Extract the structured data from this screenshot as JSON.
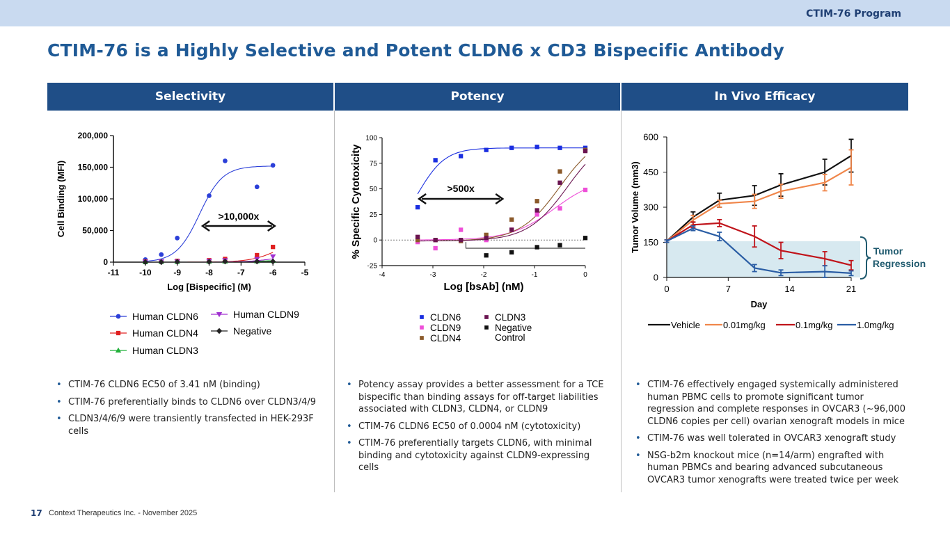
{
  "header": {
    "program": "CTIM-76 Program"
  },
  "title": "CTIM-76 is a Highly Selective and Potent CLDN6 x CD3 Bispecific Antibody",
  "columns": [
    {
      "heading": "Selectivity"
    },
    {
      "heading": "Potency"
    },
    {
      "heading": "In Vivo Efficacy"
    }
  ],
  "colors": {
    "header_bar": "#1f4e87",
    "title": "#1f5a96",
    "top_band": "#c9daf0"
  },
  "chart_data": [
    {
      "type": "scatter",
      "xlabel": "Log [Bispecific] (M)",
      "ylabel": "Cell Binding (MFI)",
      "xlim": [
        -11,
        -5
      ],
      "ylim": [
        0,
        200000
      ],
      "x_ticks": [
        "-11",
        "-10",
        "-9",
        "-8",
        "-7",
        "-6",
        "-5"
      ],
      "y_ticks": [
        "0",
        "50,000",
        "100,000",
        "150,000",
        "200,000"
      ],
      "annotation": ">10,000x",
      "series": [
        {
          "name": "Human CLDN6",
          "color": "#2b3fd8",
          "marker": "circle",
          "x": [
            -10,
            -9.5,
            -9,
            -8,
            -7.5,
            -6.5,
            -6
          ],
          "y": [
            4000,
            12000,
            38000,
            105000,
            160000,
            119000,
            153000
          ]
        },
        {
          "name": "Human CLDN4",
          "color": "#e02020",
          "marker": "square",
          "x": [
            -10,
            -9.5,
            -9,
            -8,
            -7.5,
            -6.5,
            -6
          ],
          "y": [
            1000,
            1000,
            2000,
            3000,
            5000,
            11000,
            24000
          ]
        },
        {
          "name": "Human CLDN3",
          "color": "#22b03a",
          "marker": "triangle",
          "x": [
            -10,
            -9.5,
            -9,
            -8,
            -7.5,
            -6.5,
            -6
          ],
          "y": [
            0,
            500,
            500,
            1000,
            1000,
            1500,
            2000
          ]
        },
        {
          "name": "Human CLDN9",
          "color": "#a030d0",
          "marker": "triangle-down",
          "x": [
            -10,
            -9.5,
            -9,
            -8,
            -7.5,
            -6.5,
            -6
          ],
          "y": [
            500,
            1000,
            1000,
            2000,
            3000,
            5000,
            9000
          ]
        },
        {
          "name": "Negative",
          "color": "#222222",
          "marker": "diamond",
          "x": [
            -10,
            -9.5,
            -9,
            -8,
            -7.5,
            -6.5,
            -6
          ],
          "y": [
            0,
            0,
            500,
            500,
            1000,
            1000,
            1000
          ]
        }
      ],
      "legend_rows": [
        [
          "Human CLDN6",
          "Human CLDN9"
        ],
        [
          "Human CLDN4",
          "Negative"
        ],
        [
          "Human CLDN3",
          ""
        ]
      ]
    },
    {
      "type": "scatter",
      "xlabel": "Log [bsAb] (nM)",
      "ylabel": "% Specific Cytotoxicity",
      "xlim": [
        -4,
        0
      ],
      "ylim": [
        -25,
        100
      ],
      "x_ticks": [
        "-4",
        "-3",
        "-2",
        "-1",
        "0"
      ],
      "y_ticks": [
        "-25",
        "0",
        "25",
        "50",
        "75",
        "100"
      ],
      "annotation": ">500x",
      "series": [
        {
          "name": "CLDN6",
          "color": "#1a2ee0",
          "marker": "square",
          "x": [
            -3.3,
            -2.95,
            -2.45,
            -1.95,
            -1.45,
            -0.95,
            -0.5,
            0
          ],
          "y": [
            32,
            78,
            82,
            88,
            90,
            91,
            90,
            90
          ]
        },
        {
          "name": "CLDN9",
          "color": "#ee4fd8",
          "marker": "square",
          "x": [
            -3.3,
            -2.95,
            -2.45,
            -1.95,
            -1.45,
            -0.95,
            -0.5,
            0
          ],
          "y": [
            -2,
            -8,
            10,
            0,
            10,
            25,
            31,
            49
          ]
        },
        {
          "name": "CLDN4",
          "color": "#8b5a2b",
          "marker": "square",
          "x": [
            -3.3,
            -2.95,
            -2.45,
            -1.95,
            -1.45,
            -0.95,
            -0.5,
            0
          ],
          "y": [
            0,
            0,
            -1,
            5,
            20,
            38,
            67,
            88
          ]
        },
        {
          "name": "CLDN3",
          "color": "#6a1450",
          "marker": "square",
          "x": [
            -3.3,
            -2.95,
            -2.45,
            -1.95,
            -1.45,
            -0.95,
            -0.5,
            0
          ],
          "y": [
            3,
            0,
            0,
            2,
            10,
            29,
            56,
            87
          ]
        },
        {
          "name": "Negative Control",
          "color": "#111111",
          "marker": "square",
          "x": [
            -1.95,
            -1.45,
            -0.95,
            -0.5,
            0
          ],
          "y": [
            -15,
            -12,
            -7,
            -5,
            2
          ]
        }
      ],
      "legend_rows": [
        [
          "CLDN6",
          "CLDN3"
        ],
        [
          "CLDN9",
          "Negative Control"
        ],
        [
          "CLDN4",
          ""
        ]
      ]
    },
    {
      "type": "line",
      "xlabel": "Day",
      "ylabel": "Tumor Volume (mm3)",
      "xlim": [
        0,
        21
      ],
      "ylim": [
        0,
        600
      ],
      "x_ticks": [
        "0",
        "7",
        "14",
        "21"
      ],
      "y_ticks": [
        "0",
        "150",
        "300",
        "450",
        "600"
      ],
      "annotation": "Tumor Regression",
      "shaded_band": [
        0,
        155
      ],
      "series": [
        {
          "name": "Vehicle",
          "color": "#111111",
          "x": [
            0,
            3,
            6,
            10,
            13,
            18,
            21
          ],
          "y": [
            155,
            258,
            330,
            350,
            395,
            450,
            520
          ],
          "err": [
            5,
            22,
            30,
            42,
            48,
            55,
            70
          ]
        },
        {
          "name": "0.01mg/kg",
          "color": "#f0864a",
          "x": [
            0,
            3,
            6,
            10,
            13,
            18,
            21
          ],
          "y": [
            155,
            245,
            315,
            325,
            368,
            405,
            470
          ],
          "err": [
            5,
            20,
            15,
            30,
            30,
            35,
            75
          ]
        },
        {
          "name": "0.1mg/kg",
          "color": "#c0141b",
          "x": [
            0,
            3,
            6,
            10,
            13,
            18,
            21
          ],
          "y": [
            155,
            225,
            232,
            175,
            115,
            80,
            52
          ],
          "err": [
            5,
            12,
            15,
            45,
            35,
            30,
            20
          ]
        },
        {
          "name": "1.0mg/kg",
          "color": "#2a5da4",
          "x": [
            0,
            3,
            6,
            10,
            13,
            18,
            21
          ],
          "y": [
            155,
            210,
            175,
            40,
            20,
            25,
            18
          ],
          "err": [
            5,
            10,
            18,
            15,
            12,
            25,
            10
          ]
        }
      ]
    }
  ],
  "bullets": {
    "col1": [
      "CTIM-76 CLDN6 EC50 of 3.41 nM (binding)",
      "CTIM-76 preferentially binds to CLDN6 over CLDN3/4/9",
      "CLDN3/4/6/9 were transiently transfected in HEK-293F cells"
    ],
    "col2": [
      "Potency assay provides a better assessment for a TCE bispecific than binding assays for off-target liabilities associated with CLDN3, CLDN4, or CLDN9",
      "CTIM-76 CLDN6 EC50 of 0.0004 nM (cytotoxicity)",
      "CTIM-76 preferentially targets CLDN6, with minimal binding and cytotoxicity against CLDN9-expressing cells"
    ],
    "col3": [
      "CTIM-76 effectively engaged systemically administered human PBMC cells to promote significant tumor regression and complete responses in OVCAR3 (~96,000 CLDN6 copies per cell) ovarian xenograft models in mice",
      "CTIM-76 was well tolerated in OVCAR3 xenograft study",
      "NSG-b2m knockout mice (n=14/arm) engrafted with human PBMCs and bearing advanced subcutaneous OVCAR3 tumor xenografts were treated twice per week"
    ]
  },
  "footer": {
    "page_number": "17",
    "text": "Context Therapeutics Inc. - November 2025"
  }
}
